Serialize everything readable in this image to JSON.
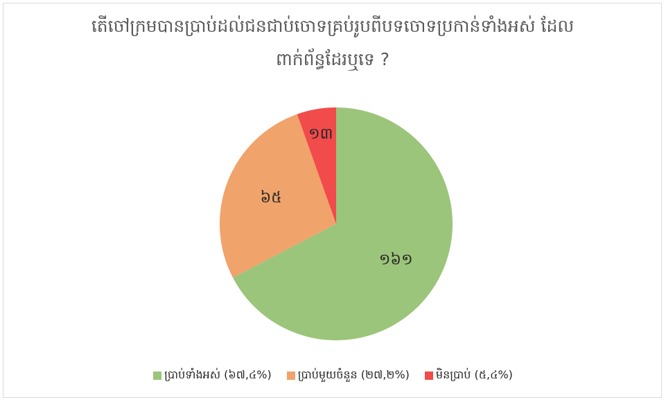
{
  "chart_data": {
    "type": "pie",
    "title": "តើចៅក្រមបានប្រាប់ដល់ជនជាប់ចោទគ្រប់រូបពីបទចោទប្រកាន់ទាំងអស់ ដែលពាក់ព័ន្ធដែរឬទេ ?",
    "categories": [
      "ប្រាប់ទាំងអស់ (៦៧,៤%)",
      "ប្រាប់មួយចំនួន (២៧,២%)",
      "មិនប្រាប់ (៥,៤%)"
    ],
    "values": [
      161,
      65,
      13
    ],
    "value_labels": [
      "១៦១",
      "៦៥",
      "១៣"
    ],
    "colors": [
      "#9bc57a",
      "#f0a36b",
      "#f24b4b"
    ],
    "legend": "bottom"
  }
}
